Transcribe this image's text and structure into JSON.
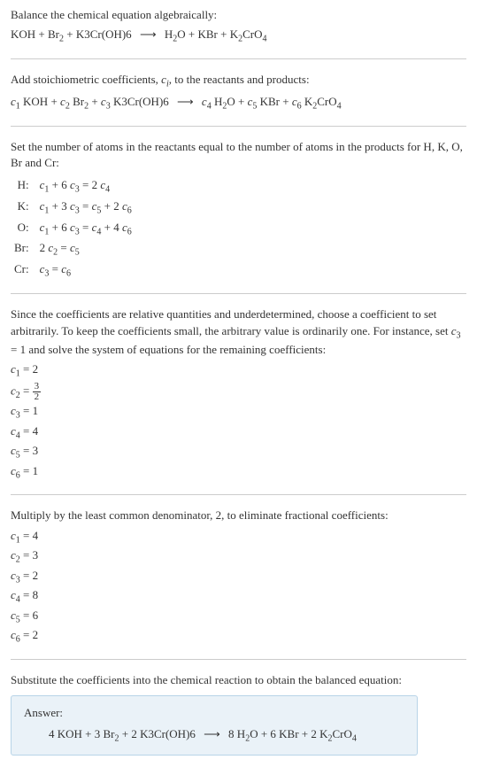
{
  "colors": {
    "text": "#333333",
    "background": "#ffffff",
    "divider": "#cccccc",
    "answer_bg": "#eaf2f8",
    "answer_border": "#b8d4e8"
  },
  "typography": {
    "base_font": "Georgia, 'Times New Roman', serif",
    "base_size": 13,
    "sub_size": 10
  },
  "section1": {
    "line1": "Balance the chemical equation algebraically:"
  },
  "reaction": {
    "r1": "KOH",
    "r2_base": "Br",
    "r2_sub": "2",
    "r3": "K3Cr(OH)6",
    "p1_base": "H",
    "p1_sub": "2",
    "p1_tail": "O",
    "p2": "KBr",
    "p3_base": "K",
    "p3_sub1": "2",
    "p3_mid": "CrO",
    "p3_sub2": "4",
    "arrow": "⟶"
  },
  "section2": {
    "intro_a": "Add stoichiometric coefficients, ",
    "intro_ci": "c",
    "intro_ci_sub": "i",
    "intro_b": ", to the reactants and products:"
  },
  "coefs": {
    "c1": "c",
    "c1s": "1",
    "c2": "c",
    "c2s": "2",
    "c3": "c",
    "c3s": "3",
    "c4": "c",
    "c4s": "4",
    "c5": "c",
    "c5s": "5",
    "c6": "c",
    "c6s": "6"
  },
  "section3": {
    "intro": "Set the number of atoms in the reactants equal to the number of atoms in the products for H, K, O, Br and Cr:",
    "rows": [
      {
        "el": "H:",
        "eq_parts": [
          "c",
          "1",
          " + 6 ",
          "c",
          "3",
          " = 2 ",
          "c",
          "4"
        ]
      },
      {
        "el": "K:",
        "eq_parts": [
          "c",
          "1",
          " + 3 ",
          "c",
          "3",
          " = ",
          "c",
          "5",
          " + 2 ",
          "c",
          "6"
        ]
      },
      {
        "el": "O:",
        "eq_parts": [
          "c",
          "1",
          " + 6 ",
          "c",
          "3",
          " = ",
          "c",
          "4",
          " + 4 ",
          "c",
          "6"
        ]
      },
      {
        "el": "Br:",
        "eq_parts": [
          "2 ",
          "c",
          "2",
          " = ",
          "c",
          "5"
        ]
      },
      {
        "el": "Cr:",
        "eq_parts": [
          "c",
          "3",
          " = ",
          "c",
          "6"
        ]
      }
    ]
  },
  "section4": {
    "text_a": "Since the coefficients are relative quantities and underdetermined, choose a coefficient to set arbitrarily. To keep the coefficients small, the arbitrary value is ordinarily one. For instance, set ",
    "text_c3": "c",
    "text_c3_sub": "3",
    "text_b": " = 1 and solve the system of equations for the remaining coefficients:",
    "lines": [
      {
        "lhs": "c",
        "sub": "1",
        "rhs": " = 2",
        "frac": null
      },
      {
        "lhs": "c",
        "sub": "2",
        "rhs": " = ",
        "frac": {
          "n": "3",
          "d": "2"
        }
      },
      {
        "lhs": "c",
        "sub": "3",
        "rhs": " = 1",
        "frac": null
      },
      {
        "lhs": "c",
        "sub": "4",
        "rhs": " = 4",
        "frac": null
      },
      {
        "lhs": "c",
        "sub": "5",
        "rhs": " = 3",
        "frac": null
      },
      {
        "lhs": "c",
        "sub": "6",
        "rhs": " = 1",
        "frac": null
      }
    ]
  },
  "section5": {
    "text": "Multiply by the least common denominator, 2, to eliminate fractional coefficients:",
    "lines": [
      {
        "lhs": "c",
        "sub": "1",
        "rhs": " = 4"
      },
      {
        "lhs": "c",
        "sub": "2",
        "rhs": " = 3"
      },
      {
        "lhs": "c",
        "sub": "3",
        "rhs": " = 2"
      },
      {
        "lhs": "c",
        "sub": "4",
        "rhs": " = 8"
      },
      {
        "lhs": "c",
        "sub": "5",
        "rhs": " = 6"
      },
      {
        "lhs": "c",
        "sub": "6",
        "rhs": " = 2"
      }
    ]
  },
  "section6": {
    "text": "Substitute the coefficients into the chemical reaction to obtain the balanced equation:"
  },
  "answer": {
    "label": "Answer:",
    "lhs": {
      "t1": "4 KOH + 3 Br",
      "s1": "2",
      "t2": " + 2 K3Cr(OH)6"
    },
    "arrow": "⟶",
    "rhs": {
      "t1": "8 H",
      "s1": "2",
      "t2": "O + 6 KBr + 2 K",
      "s2": "2",
      "t3": "CrO",
      "s3": "4"
    }
  }
}
